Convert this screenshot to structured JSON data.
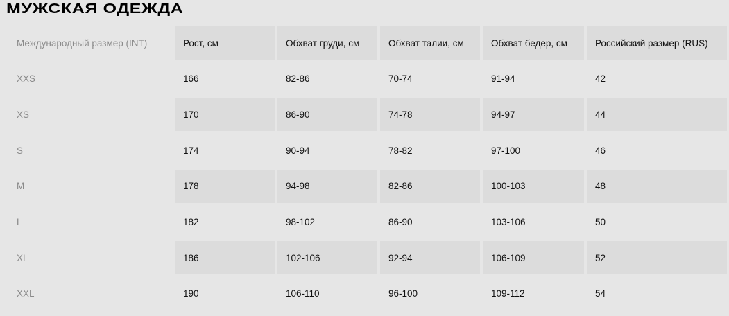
{
  "title": "МУЖСКАЯ ОДЕЖДА",
  "colors": {
    "background": "#e6e6e6",
    "shaded_cell": "#dcdcdc",
    "label": "#8a8a8a",
    "text": "#111111"
  },
  "headers": [
    "Международный размер (INT)",
    "Рост, см",
    "Обхват груди, см",
    "Обхват талии, см",
    "Обхват бедер, см",
    "Российский размер (RUS)"
  ],
  "rows": [
    [
      "XXS",
      "166",
      "82-86",
      "70-74",
      "91-94",
      "42"
    ],
    [
      "XS",
      "170",
      "86-90",
      "74-78",
      "94-97",
      "44"
    ],
    [
      "S",
      "174",
      "90-94",
      "78-82",
      "97-100",
      "46"
    ],
    [
      "M",
      "178",
      "94-98",
      "82-86",
      "100-103",
      "48"
    ],
    [
      "L",
      "182",
      "98-102",
      "86-90",
      "103-106",
      "50"
    ],
    [
      "XL",
      "186",
      "102-106",
      "92-94",
      "106-109",
      "52"
    ],
    [
      "XXL",
      "190",
      "106-110",
      "96-100",
      "109-112",
      "54"
    ]
  ]
}
